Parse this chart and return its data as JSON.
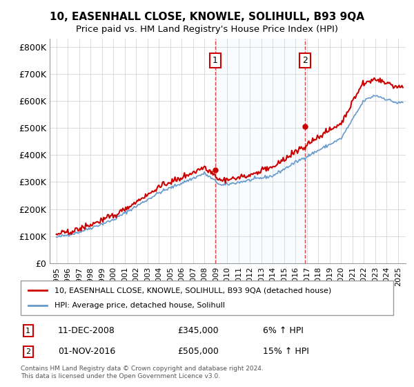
{
  "title": "10, EASENHALL CLOSE, KNOWLE, SOLIHULL, B93 9QA",
  "subtitle": "Price paid vs. HM Land Registry's House Price Index (HPI)",
  "legend_line1": "10, EASENHALL CLOSE, KNOWLE, SOLIHULL, B93 9QA (detached house)",
  "legend_line2": "HPI: Average price, detached house, Solihull",
  "annotation1_label": "1",
  "annotation1_date": "11-DEC-2008",
  "annotation1_price": "£345,000",
  "annotation1_hpi": "6% ↑ HPI",
  "annotation2_label": "2",
  "annotation2_date": "01-NOV-2016",
  "annotation2_price": "£505,000",
  "annotation2_hpi": "15% ↑ HPI",
  "footer": "Contains HM Land Registry data © Crown copyright and database right 2024.\nThis data is licensed under the Open Government Licence v3.0.",
  "hpi_color": "#6699cc",
  "price_color": "#cc0000",
  "annotation_color": "#cc0000",
  "background_color": "#ffffff",
  "plot_bg_color": "#ffffff",
  "shaded_color": "#ddeeff",
  "ylim": [
    0,
    830000
  ],
  "yticks": [
    0,
    100000,
    200000,
    300000,
    400000,
    500000,
    600000,
    700000,
    800000
  ],
  "ytick_labels": [
    "£0",
    "£100K",
    "£200K",
    "£300K",
    "£400K",
    "£500K",
    "£600K",
    "£700K",
    "£800K"
  ]
}
